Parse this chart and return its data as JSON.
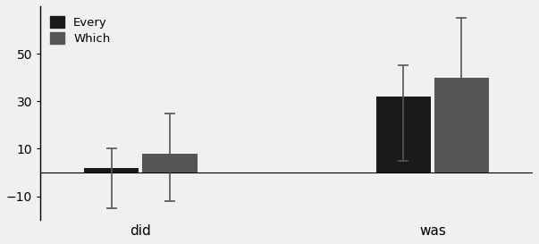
{
  "groups": [
    "did",
    "was"
  ],
  "series": [
    "Every",
    "Which"
  ],
  "bar_values": [
    [
      2,
      8
    ],
    [
      32,
      40
    ]
  ],
  "error_low": [
    [
      17,
      20
    ],
    [
      27,
      15
    ]
  ],
  "error_high": [
    [
      8,
      17
    ],
    [
      13,
      25
    ]
  ],
  "bar_colors": [
    "#1a1a1a",
    "#555555"
  ],
  "ylim": [
    -20,
    70
  ],
  "yticks": [
    -10,
    10,
    30,
    50
  ],
  "group_positions": [
    1.0,
    2.6
  ],
  "bar_width": 0.3,
  "bar_gap": 0.32,
  "legend_labels": [
    "Every",
    "Which"
  ],
  "xlabel_fontsize": 11,
  "tick_fontsize": 10,
  "background_color": "#f0f0f0",
  "capsize": 4
}
